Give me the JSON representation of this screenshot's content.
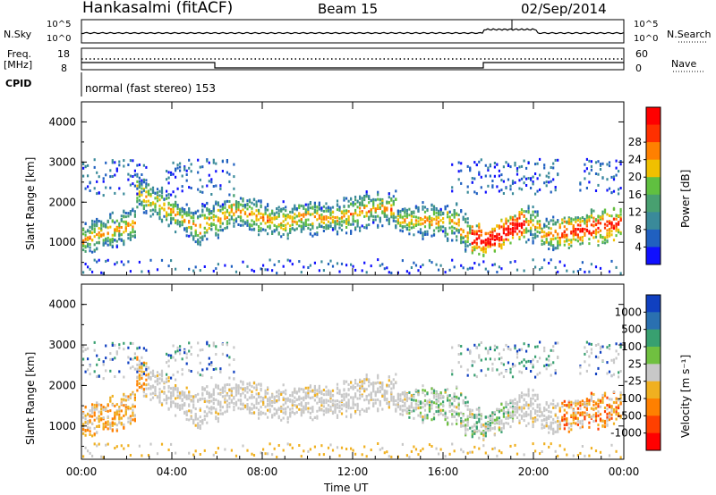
{
  "header": {
    "station": "Hankasalmi (fitACF)",
    "beam": "Beam 15",
    "date": "02/Sep/2014"
  },
  "noise_panel": {
    "left_label": "N.Sky",
    "right_label": "N.Search",
    "left_ticks": [
      "10^5",
      "10^0"
    ],
    "right_ticks": [
      "10^5",
      "10^0"
    ]
  },
  "freq_panel": {
    "left_label_line1": "Freq.",
    "left_label_line2": "[MHz]",
    "right_label": "Nave",
    "left_ticks": [
      "18",
      "8"
    ],
    "right_ticks": [
      "60",
      "0"
    ]
  },
  "cpid": {
    "label": "CPID",
    "text": "normal (fast stereo) 153"
  },
  "x_axis": {
    "label": "Time UT",
    "ticks": [
      "00:00",
      "04:00",
      "08:00",
      "12:00",
      "16:00",
      "20:00",
      "00:00"
    ]
  },
  "power_panel": {
    "ylabel": "Slant Range [km]",
    "yticks": [
      "1000",
      "2000",
      "3000",
      "4000"
    ],
    "colorbar_label": "Power [dB]",
    "colorbar_ticks": [
      "4",
      "8",
      "12",
      "16",
      "20",
      "24",
      "28"
    ],
    "colorbar_colors": [
      "#1010ff",
      "#2060c0",
      "#3a8a9a",
      "#48a070",
      "#60c040",
      "#f0c000",
      "#ff8000",
      "#ff3000",
      "#ff0000"
    ]
  },
  "velocity_panel": {
    "ylabel": "Slant Range [km]",
    "yticks": [
      "1000",
      "2000",
      "3000",
      "4000"
    ],
    "colorbar_label": "Velocity [m s⁻¹]",
    "colorbar_ticks": [
      "1000",
      "500",
      "100",
      "25",
      "-25",
      "-100",
      "-500",
      "-1000"
    ],
    "colorbar_colors": [
      "#1040c0",
      "#2a70b0",
      "#38a070",
      "#70c040",
      "#c8c8c8",
      "#f0b020",
      "#ff8000",
      "#ff4000",
      "#ff0000"
    ]
  },
  "chart_data": [
    {
      "type": "heatmap",
      "name": "power",
      "x": [
        "00:00",
        "04:00",
        "08:00",
        "12:00",
        "16:00",
        "20:00",
        "00:00"
      ],
      "ylim": [
        180,
        4500
      ],
      "clim": [
        0,
        32
      ],
      "units": "dB"
    },
    {
      "type": "heatmap",
      "name": "velocity",
      "x": [
        "00:00",
        "04:00",
        "08:00",
        "12:00",
        "16:00",
        "20:00",
        "00:00"
      ],
      "ylim": [
        180,
        4500
      ],
      "clim": [
        -1000,
        1000
      ],
      "units": "m s-1"
    }
  ]
}
